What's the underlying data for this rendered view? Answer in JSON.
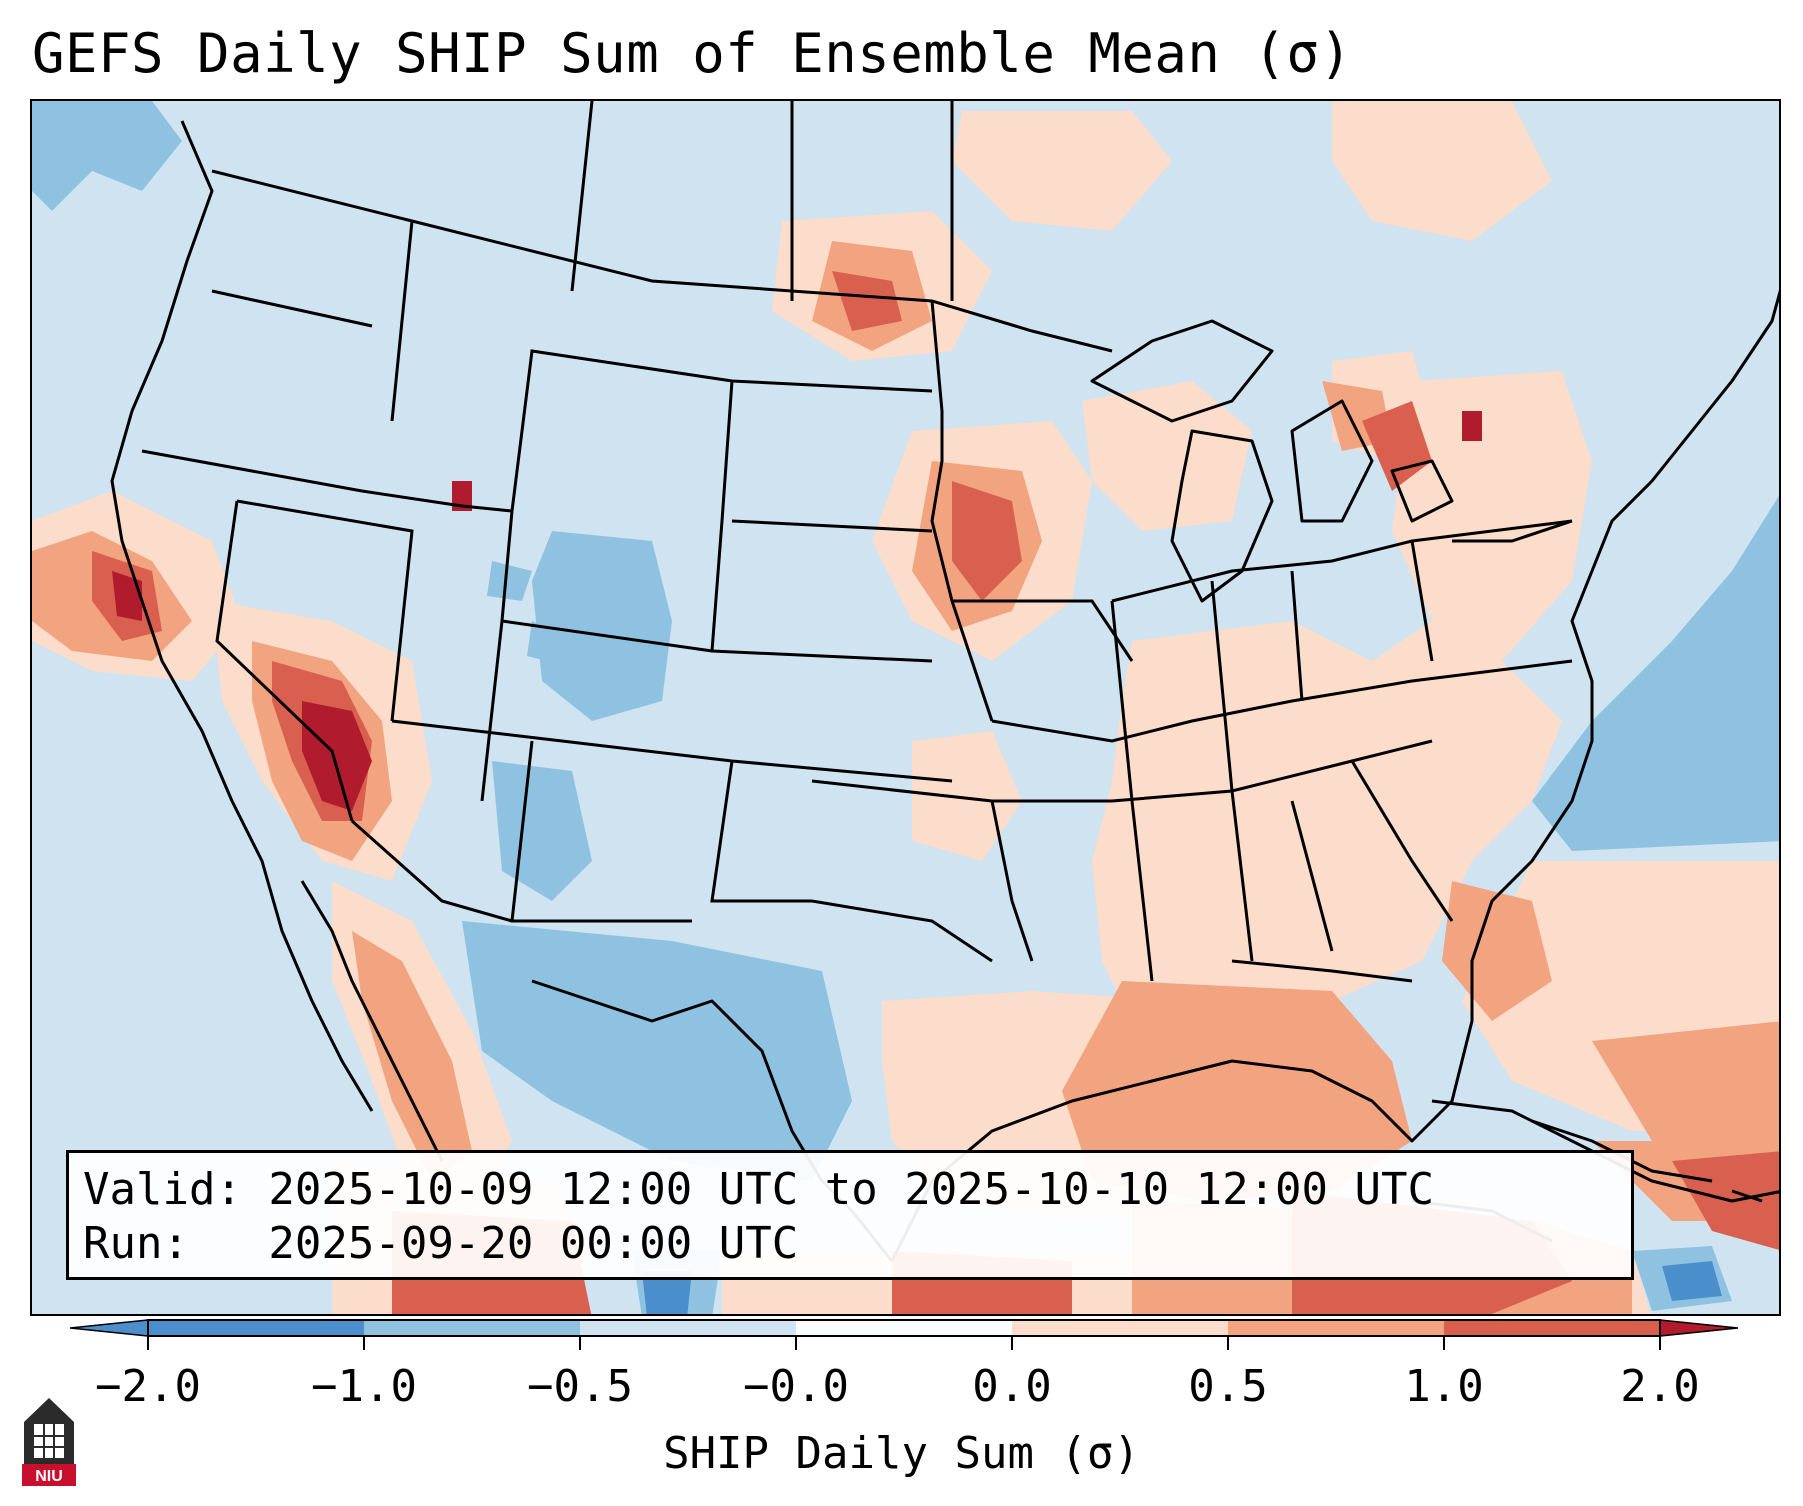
{
  "title": "GEFS Daily SHIP Sum of Ensemble Mean (σ)",
  "info": {
    "valid_line": "Valid: 2025-10-09 12:00 UTC to 2025-10-10 12:00 UTC",
    "run_line": "Run:   2025-09-20 00:00 UTC"
  },
  "colorbar": {
    "label": "SHIP Daily Sum (σ)",
    "ticks": [
      "−2.0",
      "−1.0",
      "−0.5",
      "−0.0",
      "0.0",
      "0.5",
      "1.0",
      "2.0"
    ],
    "colors": [
      "#4a8fcb",
      "#8fc2e1",
      "#cfe3f0",
      "#f9fbfd",
      "#fcdccb",
      "#f1a47f",
      "#d9604f",
      "#b01c2e"
    ],
    "extend": "both"
  },
  "logo": {
    "text": "NIU",
    "color": "#c8102e"
  },
  "colors": {
    "ocean_neutral": "#cfe3f0",
    "land_neutral": "#cfe3f0",
    "coastline": "#000000",
    "borders": "#000000"
  }
}
